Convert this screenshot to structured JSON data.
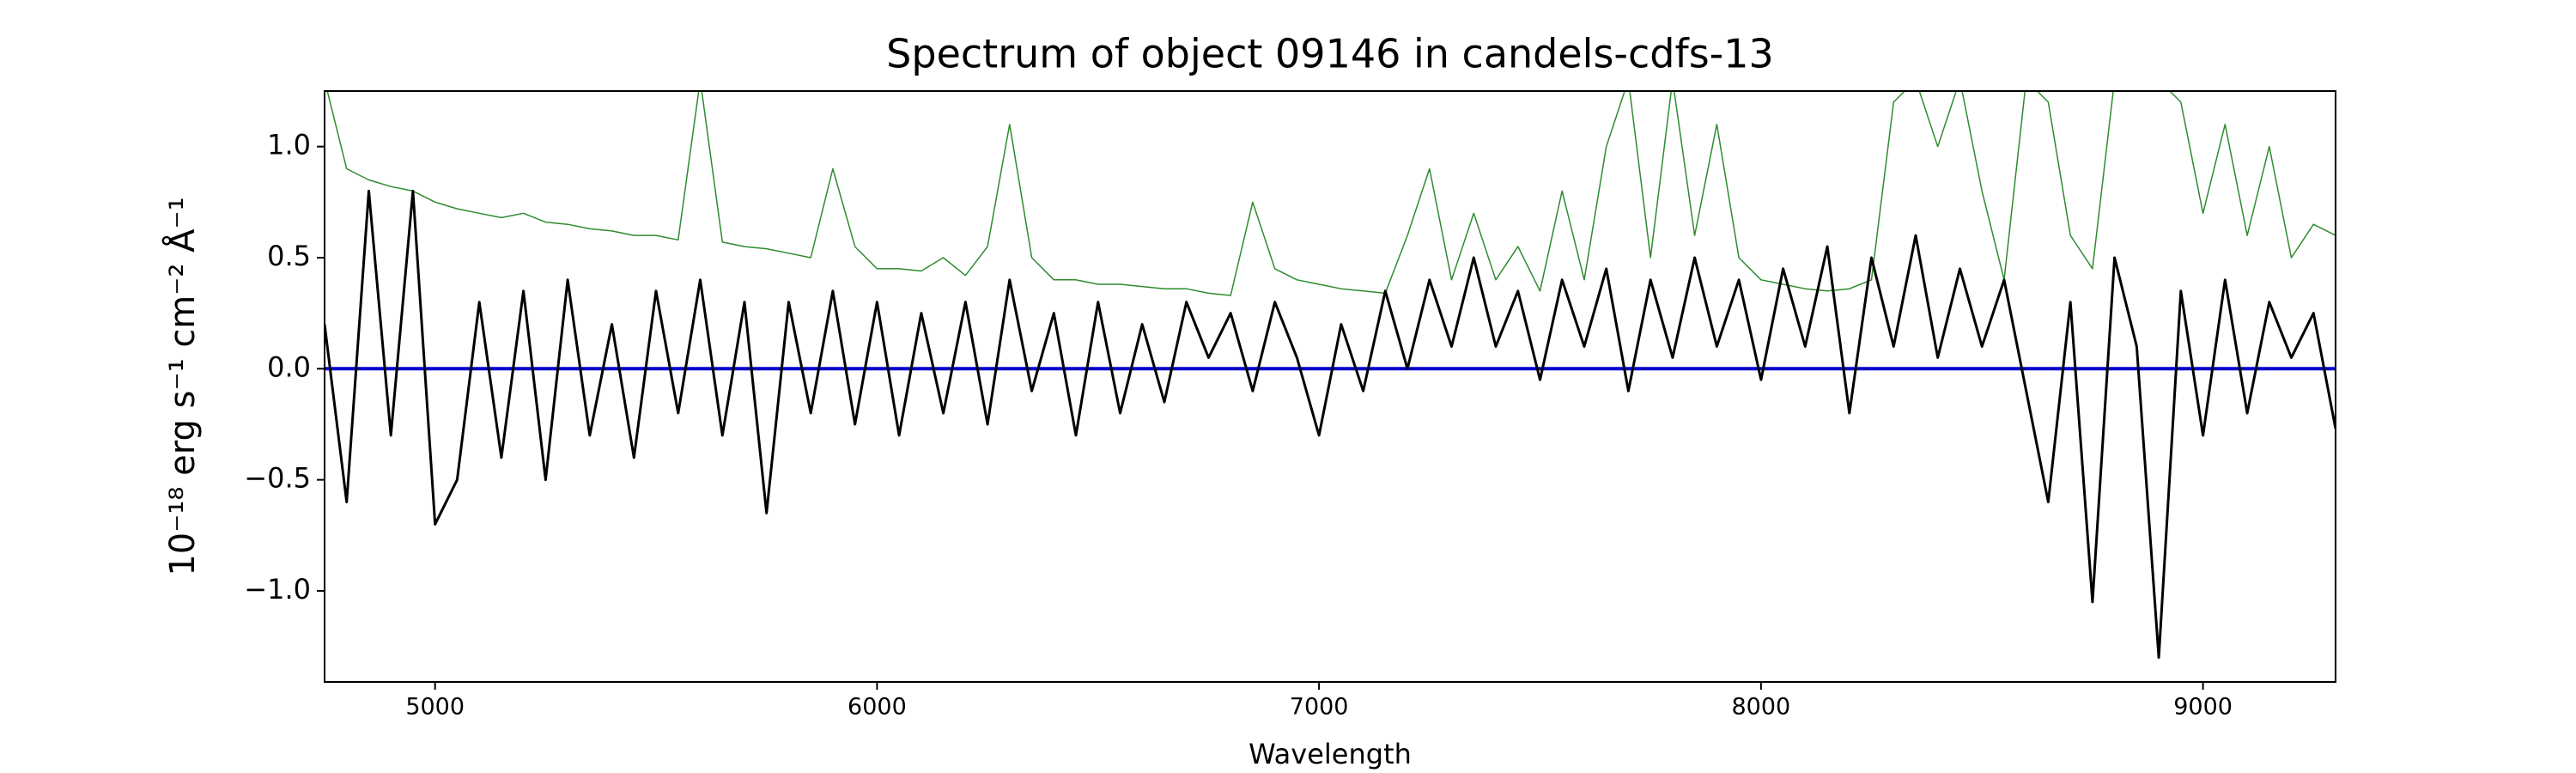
{
  "chart_data": {
    "type": "line",
    "title": "Spectrum of object 09146 in candels-cdfs-13",
    "xlabel": "Wavelength",
    "ylabel": "10⁻¹⁸ erg s⁻¹ cm⁻² Å⁻¹",
    "x": [
      4750,
      4800,
      4850,
      4900,
      4950,
      5000,
      5050,
      5100,
      5150,
      5200,
      5250,
      5300,
      5350,
      5400,
      5450,
      5500,
      5550,
      5600,
      5650,
      5700,
      5750,
      5800,
      5850,
      5900,
      5950,
      6000,
      6050,
      6100,
      6150,
      6200,
      6250,
      6300,
      6350,
      6400,
      6450,
      6500,
      6550,
      6600,
      6650,
      6700,
      6750,
      6800,
      6850,
      6900,
      6950,
      7000,
      7050,
      7100,
      7150,
      7200,
      7250,
      7300,
      7350,
      7400,
      7450,
      7500,
      7550,
      7600,
      7650,
      7700,
      7750,
      7800,
      7850,
      7900,
      7950,
      8000,
      8050,
      8100,
      8150,
      8200,
      8250,
      8300,
      8350,
      8400,
      8450,
      8500,
      8550,
      8600,
      8650,
      8700,
      8750,
      8800,
      8850,
      8900,
      8950,
      9000,
      9050,
      9100,
      9150,
      9200,
      9250,
      9300
    ],
    "series": [
      {
        "color": "#2e8b2e",
        "values": [
          1.3,
          0.9,
          0.85,
          0.82,
          0.8,
          0.75,
          0.72,
          0.7,
          0.68,
          0.7,
          0.66,
          0.65,
          0.63,
          0.62,
          0.6,
          0.6,
          0.58,
          1.3,
          0.57,
          0.55,
          0.54,
          0.52,
          0.5,
          0.9,
          0.55,
          0.45,
          0.45,
          0.44,
          0.5,
          0.42,
          0.55,
          1.1,
          0.5,
          0.4,
          0.4,
          0.38,
          0.38,
          0.37,
          0.36,
          0.36,
          0.34,
          0.33,
          0.75,
          0.45,
          0.4,
          0.38,
          0.36,
          0.35,
          0.34,
          0.6,
          0.9,
          0.4,
          0.7,
          0.4,
          0.55,
          0.35,
          0.8,
          0.4,
          1.0,
          1.3,
          0.5,
          1.3,
          0.6,
          1.1,
          0.5,
          0.4,
          0.38,
          0.36,
          0.35,
          0.36,
          0.4,
          1.2,
          1.3,
          1.0,
          1.3,
          0.8,
          0.4,
          1.3,
          1.2,
          0.6,
          0.45,
          1.3,
          1.3,
          1.3,
          1.2,
          0.7,
          1.1,
          0.6,
          1.0,
          0.5,
          0.65,
          0.6
        ]
      },
      {
        "color": "#0000cc",
        "x": [
          4750,
          9300
        ],
        "values": [
          0,
          0
        ]
      },
      {
        "color": "#000000",
        "values": [
          0.2,
          -0.6,
          0.8,
          -0.3,
          0.8,
          -0.7,
          -0.5,
          0.3,
          -0.4,
          0.35,
          -0.5,
          0.4,
          -0.3,
          0.2,
          -0.4,
          0.35,
          -0.2,
          0.4,
          -0.3,
          0.3,
          -0.65,
          0.3,
          -0.2,
          0.35,
          -0.25,
          0.3,
          -0.3,
          0.25,
          -0.2,
          0.3,
          -0.25,
          0.4,
          -0.1,
          0.25,
          -0.3,
          0.3,
          -0.2,
          0.2,
          -0.15,
          0.3,
          0.05,
          0.25,
          -0.1,
          0.3,
          0.05,
          -0.3,
          0.2,
          -0.1,
          0.35,
          0.0,
          0.4,
          0.1,
          0.5,
          0.1,
          0.35,
          -0.05,
          0.4,
          0.1,
          0.45,
          -0.1,
          0.4,
          0.05,
          0.5,
          0.1,
          0.4,
          -0.05,
          0.45,
          0.1,
          0.55,
          -0.2,
          0.5,
          0.1,
          0.6,
          0.05,
          0.45,
          0.1,
          0.4,
          -0.1,
          -0.6,
          0.3,
          -1.05,
          0.5,
          0.1,
          -1.3,
          0.35,
          -0.3,
          0.4,
          -0.2,
          0.3,
          0.05,
          0.25,
          -0.27
        ]
      }
    ],
    "xlim": [
      4750,
      9300
    ],
    "ylim": [
      -1.41,
      1.25
    ],
    "xticks": [
      5000,
      6000,
      7000,
      8000,
      9000
    ],
    "yticks": [
      {
        "value": -1,
        "label": "−1.0"
      },
      {
        "value": -0.5,
        "label": "−0.5"
      },
      {
        "value": 0,
        "label": "0.0"
      },
      0.5,
      {
        "value": 1,
        "label": "1.0"
      }
    ]
  }
}
